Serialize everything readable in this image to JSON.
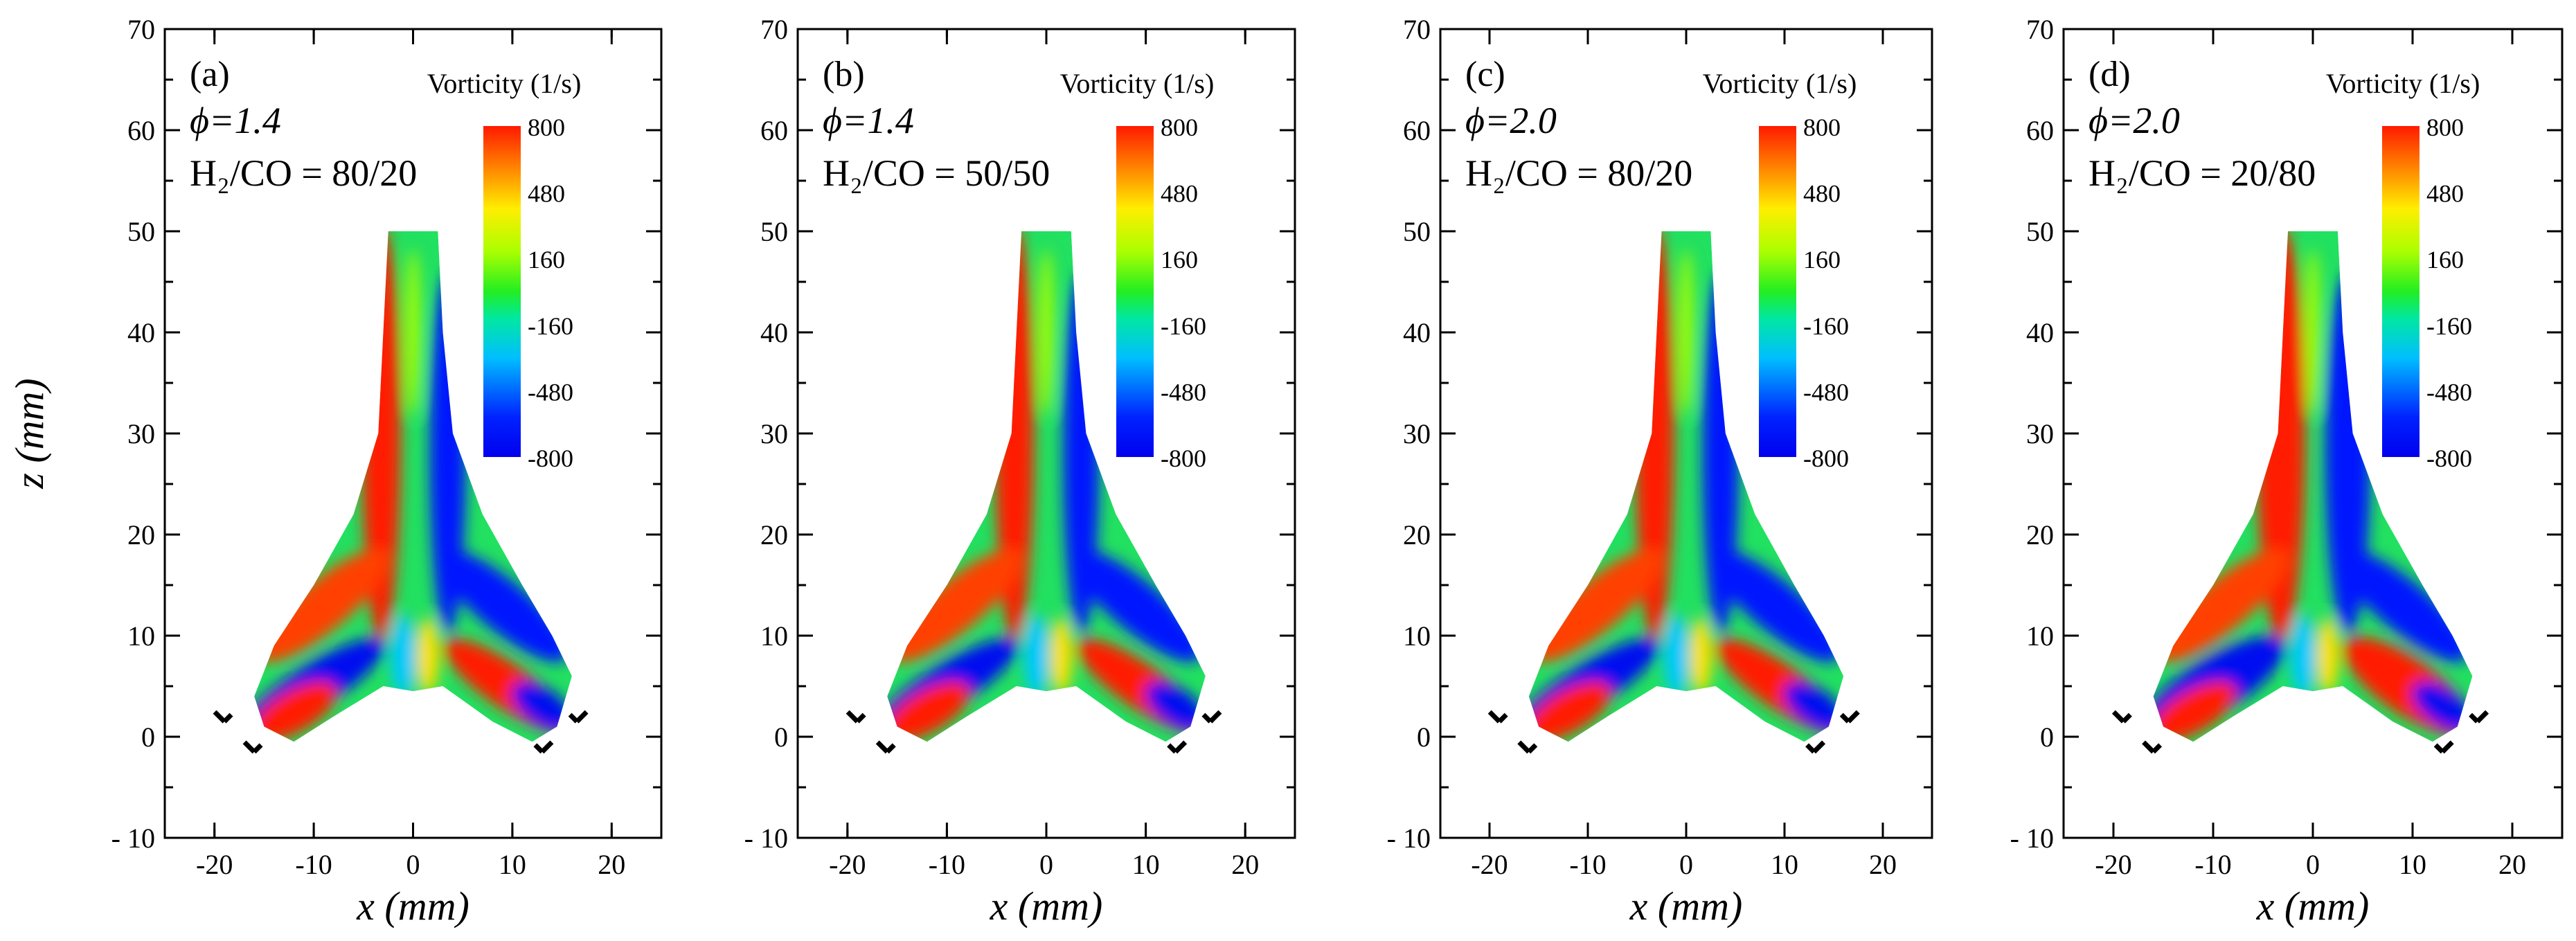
{
  "chart_data": [
    {
      "type": "heatmap",
      "panel_label": "(a)",
      "phi_label": "ϕ=1.4",
      "ratio_label": "H₂/CO = 80/20",
      "colorbar_title": "Vorticity (1/s)",
      "colorbar_ticks": [
        "800",
        "480",
        "160",
        "-160",
        "-480",
        "-800"
      ],
      "xlabel": "x (mm)",
      "ylabel": "z (mm)",
      "xticks": [
        -20,
        -10,
        0,
        10,
        20
      ],
      "yticks": [
        70,
        60,
        50,
        40,
        30,
        20,
        10,
        0,
        -10
      ],
      "xlim": [
        -25,
        25
      ],
      "ylim": [
        -10,
        70
      ],
      "clim": [
        -800,
        800
      ]
    },
    {
      "type": "heatmap",
      "panel_label": "(b)",
      "phi_label": "ϕ=1.4",
      "ratio_label": "H₂/CO = 50/50",
      "colorbar_title": "Vorticity (1/s)",
      "colorbar_ticks": [
        "800",
        "480",
        "160",
        "-160",
        "-480",
        "-800"
      ],
      "xlabel": "x (mm)",
      "ylabel": "",
      "xticks": [
        -20,
        -10,
        0,
        10,
        20
      ],
      "yticks": [
        70,
        60,
        50,
        40,
        30,
        20,
        10,
        0,
        -10
      ],
      "xlim": [
        -25,
        25
      ],
      "ylim": [
        -10,
        70
      ],
      "clim": [
        -800,
        800
      ]
    },
    {
      "type": "heatmap",
      "panel_label": "(c)",
      "phi_label": "ϕ=2.0",
      "ratio_label": "H₂/CO = 80/20",
      "colorbar_title": "Vorticity (1/s)",
      "colorbar_ticks": [
        "800",
        "480",
        "160",
        "-160",
        "-480",
        "-800"
      ],
      "xlabel": "x (mm)",
      "ylabel": "",
      "xticks": [
        -20,
        -10,
        0,
        10,
        20
      ],
      "yticks": [
        70,
        60,
        50,
        40,
        30,
        20,
        10,
        0,
        -10
      ],
      "xlim": [
        -25,
        25
      ],
      "ylim": [
        -10,
        70
      ],
      "clim": [
        -800,
        800
      ]
    },
    {
      "type": "heatmap",
      "panel_label": "(d)",
      "phi_label": "ϕ=2.0",
      "ratio_label": "H₂/CO = 20/80",
      "colorbar_title": "Vorticity (1/s)",
      "colorbar_ticks": [
        "800",
        "480",
        "160",
        "-160",
        "-480",
        "-800"
      ],
      "xlabel": "x (mm)",
      "ylabel": "",
      "xticks": [
        -20,
        -10,
        0,
        10,
        20
      ],
      "yticks": [
        70,
        60,
        50,
        40,
        30,
        20,
        10,
        0,
        -10
      ],
      "xlim": [
        -25,
        25
      ],
      "ylim": [
        -10,
        70
      ],
      "clim": [
        -800,
        800
      ]
    }
  ]
}
